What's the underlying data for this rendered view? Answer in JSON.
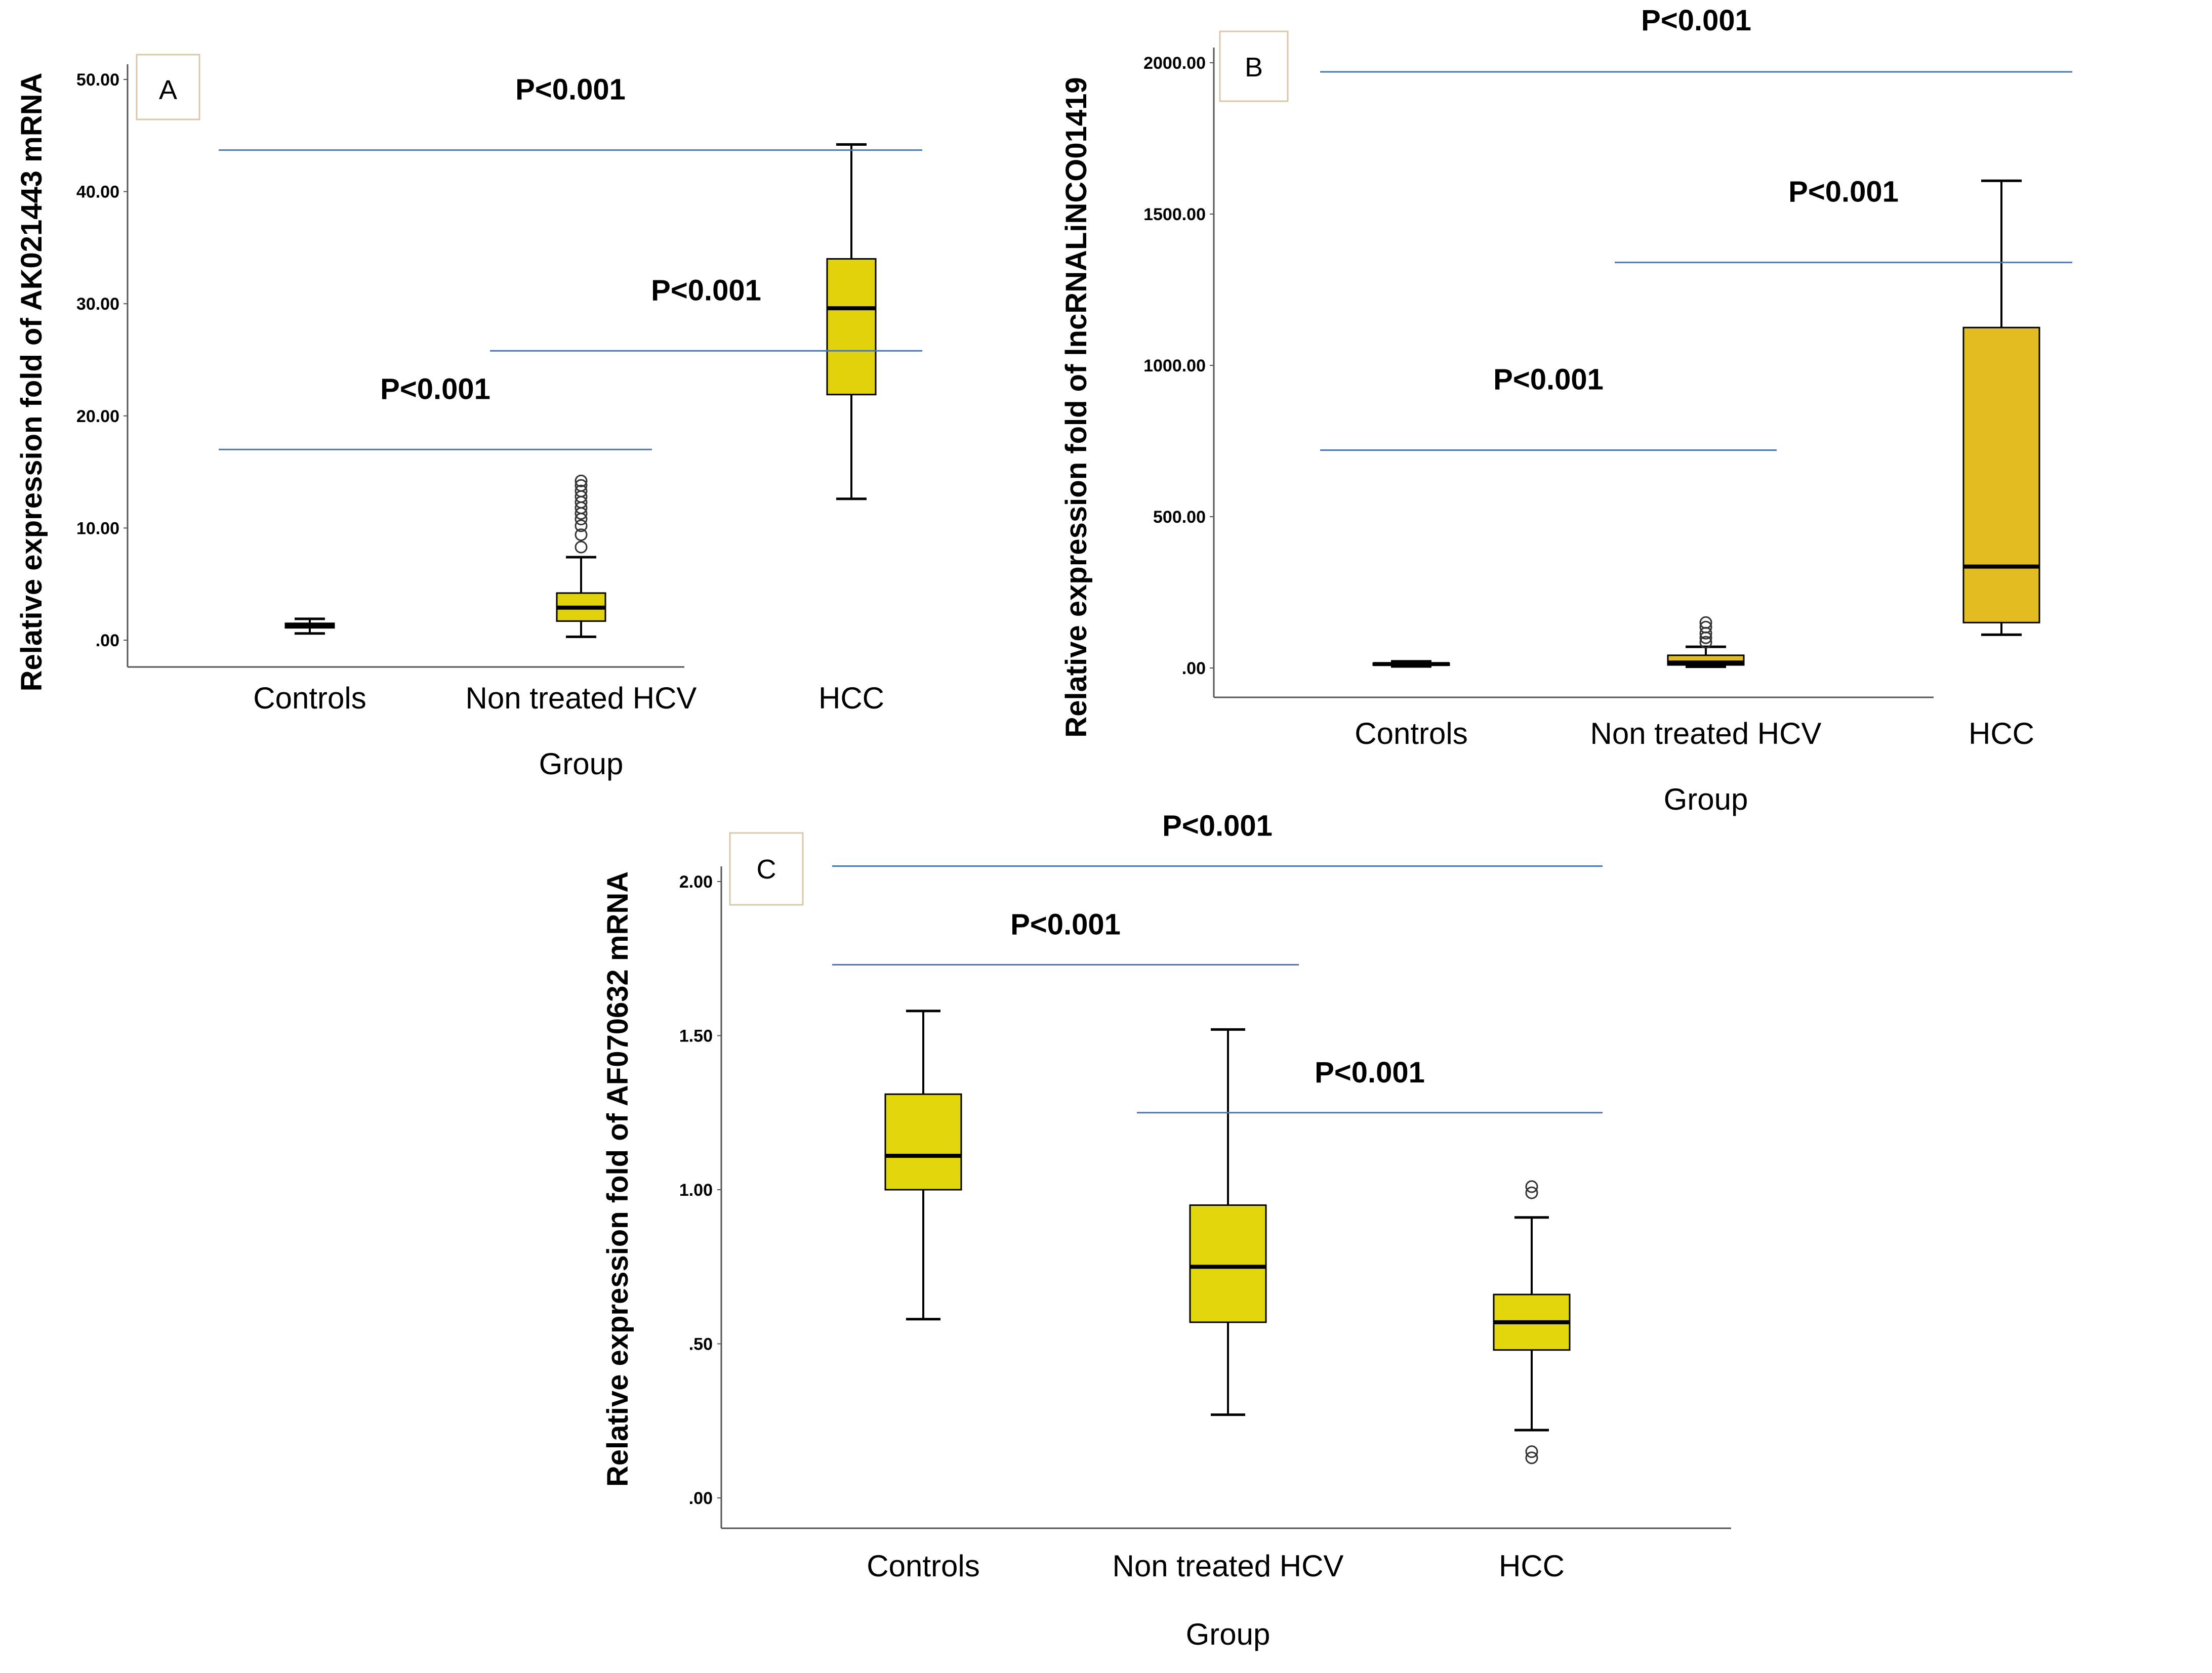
{
  "chart_data": [
    {
      "panel": "A",
      "type": "box",
      "ylabel": "Relative expression fold of AK021443 mRNA",
      "xlabel": "Group",
      "ylim": [
        0,
        50
      ],
      "yticks": [
        0,
        10,
        20,
        30,
        40,
        50
      ],
      "ytick_labels": [
        ".00",
        "10.00",
        "20.00",
        "30.00",
        "40.00",
        "50.00"
      ],
      "categories": [
        "Controls",
        "Non treated HCV",
        "HCC"
      ],
      "box_color": "#e2d20c",
      "boxes": [
        {
          "category": "Controls",
          "whisker_low": 0.6,
          "q1": 1.1,
          "median": 1.3,
          "q3": 1.5,
          "whisker_high": 1.9
        },
        {
          "category": "Non treated HCV",
          "whisker_low": 0.3,
          "q1": 1.7,
          "median": 2.9,
          "q3": 4.2,
          "whisker_high": 7.4,
          "outliers": [
            8.3,
            9.4,
            10.2,
            10.8,
            11.3,
            11.8,
            12.3,
            12.8,
            13.3,
            13.8,
            14.2
          ]
        },
        {
          "category": "HCC",
          "whisker_low": 12.6,
          "q1": 21.9,
          "median": 29.6,
          "q3": 34.0,
          "whisker_high": 44.2
        }
      ],
      "comparisons": [
        {
          "from": "Controls",
          "to": "Non treated HCV",
          "y": 17.0,
          "label": "P<0.001"
        },
        {
          "from": "Non treated HCV",
          "to": "HCC",
          "y": 25.8,
          "label": "P<0.001"
        },
        {
          "from": "Controls",
          "to": "HCC",
          "y": 43.7,
          "label": "P<0.001"
        }
      ]
    },
    {
      "panel": "B",
      "type": "box",
      "ylabel": "Relative expression fold of lncRNALiNCO01419",
      "xlabel": "Group",
      "ylim": [
        0,
        2000
      ],
      "yticks": [
        0,
        500,
        1000,
        1500,
        2000
      ],
      "ytick_labels": [
        ".00",
        "500.00",
        "1000.00",
        "1500.00",
        "2000.00"
      ],
      "categories": [
        "Controls",
        "Non treated HCV",
        "HCC"
      ],
      "box_color": "#e2bc20",
      "boxes": [
        {
          "category": "Controls",
          "whisker_low": 5,
          "q1": 10,
          "median": 13,
          "q3": 16,
          "whisker_high": 22
        },
        {
          "category": "Non treated HCV",
          "whisker_low": 4,
          "q1": 10,
          "median": 18,
          "q3": 42,
          "whisker_high": 70,
          "outliers": [
            85,
            100,
            115,
            135,
            150
          ]
        },
        {
          "category": "HCC",
          "whisker_low": 110,
          "q1": 150,
          "median": 335,
          "q3": 1125,
          "whisker_high": 1610
        }
      ],
      "comparisons": [
        {
          "from": "Controls",
          "to": "Non treated HCV",
          "y": 720,
          "label": "P<0.001"
        },
        {
          "from": "Non treated HCV",
          "to": "HCC",
          "y": 1340,
          "label": "P<0.001"
        },
        {
          "from": "Controls",
          "to": "HCC",
          "y": 1970,
          "label": "P<0.001"
        }
      ]
    },
    {
      "panel": "C",
      "type": "box",
      "ylabel": "Relative expression fold of AF070632 mRNA",
      "xlabel": "Group",
      "ylim": [
        0,
        2.0
      ],
      "yticks": [
        0,
        0.5,
        1.0,
        1.5,
        2.0
      ],
      "ytick_labels": [
        ".00",
        ".50",
        "1.00",
        "1.50",
        "2.00"
      ],
      "categories": [
        "Controls",
        "Non treated HCV",
        "HCC"
      ],
      "box_color": "#e2d60c",
      "boxes": [
        {
          "category": "Controls",
          "whisker_low": 0.58,
          "q1": 1.0,
          "median": 1.11,
          "q3": 1.31,
          "whisker_high": 1.58
        },
        {
          "category": "Non treated HCV",
          "whisker_low": 0.27,
          "q1": 0.57,
          "median": 0.75,
          "q3": 0.95,
          "whisker_high": 1.52
        },
        {
          "category": "HCC",
          "whisker_low": 0.22,
          "q1": 0.48,
          "median": 0.57,
          "q3": 0.66,
          "whisker_high": 0.91,
          "outliers": [
            0.13,
            0.15,
            0.99,
            1.01
          ]
        }
      ],
      "comparisons": [
        {
          "from": "Controls",
          "to": "HCC",
          "y": 2.05,
          "label": "P<0.001"
        },
        {
          "from": "Controls",
          "to": "Non treated HCV",
          "y": 1.73,
          "label": "P<0.001"
        },
        {
          "from": "Non treated HCV",
          "to": "HCC",
          "y": 1.25,
          "label": "P<0.001"
        }
      ]
    }
  ]
}
